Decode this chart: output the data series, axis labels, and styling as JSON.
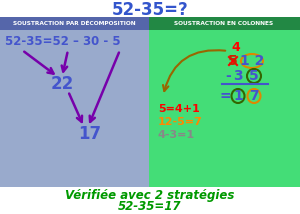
{
  "title": "52-35=?",
  "title_color": "#3355cc",
  "bg_color": "#ffffff",
  "left_bg": "#99aacc",
  "right_bg": "#44dd77",
  "header_left_bg": "#5566aa",
  "header_right_bg": "#228844",
  "header_left_text": "SOUSTRACTION PAR DÉCOMPOSITION",
  "header_right_text": "SOUSTRACTION EN COLONNES",
  "left_eq": "52-35=52 – 30 - 5",
  "left_22": "22",
  "left_17": "17",
  "right_red": "5=4+1",
  "right_orange": "12-5=7",
  "right_gray": "4-3=1",
  "bottom_line1": "Vérifiée avec 2 stratégies",
  "bottom_line2": "52-35=17",
  "bottom_color": "#009900",
  "arrow_color": "#7700aa",
  "text_blue": "#4455cc"
}
